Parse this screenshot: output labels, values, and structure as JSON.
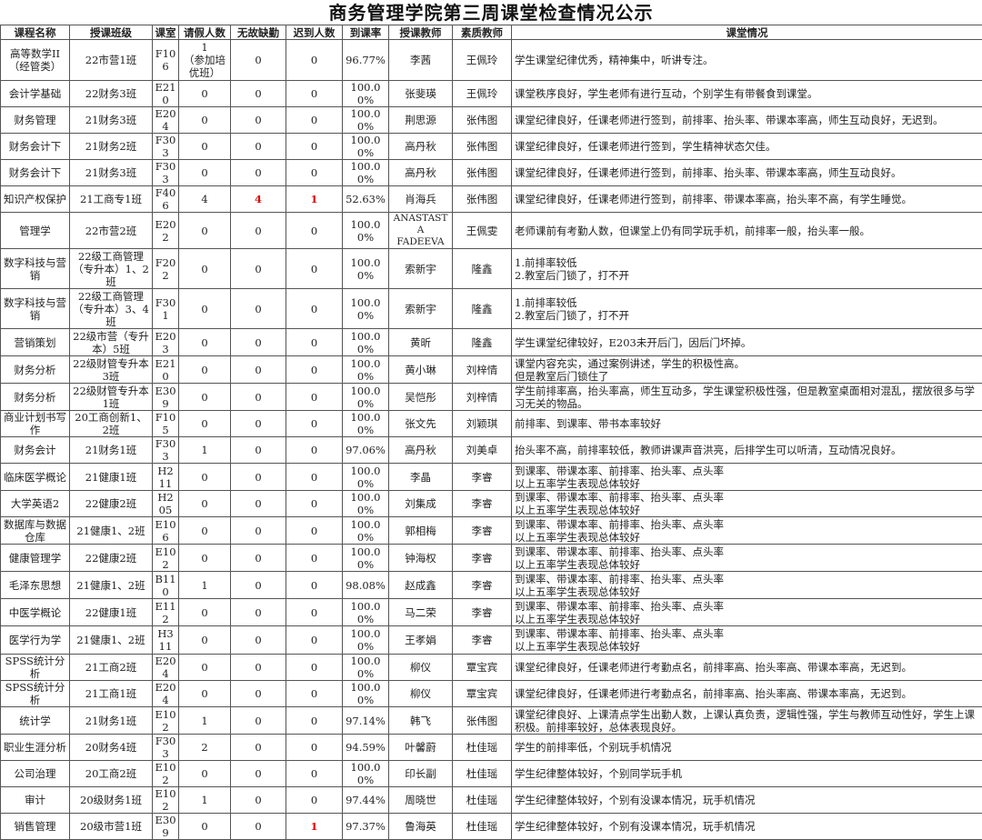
{
  "title": "商务管理学院第三周课堂检查情况公示",
  "colors": {
    "highlight_red": "#e00000",
    "border": "#555555"
  },
  "headers": [
    "课程名称",
    "授课班级",
    "课室",
    "请假人数",
    "无故缺勤",
    "迟到人数",
    "到课率",
    "授课教师",
    "素质教师",
    "课堂情况"
  ],
  "rows": [
    {
      "course": "高等数学II\n（经管类）",
      "class": "22市营1班",
      "room": "F106",
      "leave": "1\n（参加培优班）",
      "absent": "0",
      "late": "0",
      "rate": "96.77%",
      "teacher": "李茜",
      "quality": "王佩玲",
      "situation": "学生课堂纪律优秀，精神集中，听讲专注。"
    },
    {
      "course": "会计学基础",
      "class": "22财务3班",
      "room": "E210",
      "leave": "0",
      "absent": "0",
      "late": "0",
      "rate": "100.00%",
      "teacher": "张斐瑛",
      "quality": "王佩玲",
      "situation": "课堂秩序良好，学生老师有进行互动，个别学生有带餐食到课堂。"
    },
    {
      "course": "财务管理",
      "class": "21财务3班",
      "room": "E204",
      "leave": "0",
      "absent": "0",
      "late": "0",
      "rate": "100.00%",
      "teacher": "荆思源",
      "quality": "张伟图",
      "situation": "课堂纪律良好，任课老师进行签到，前排率、抬头率、带课本率高，师生互动良好，无迟到。"
    },
    {
      "course": "财务会计下",
      "class": "21财务2班",
      "room": "F303",
      "leave": "0",
      "absent": "0",
      "late": "0",
      "rate": "100.00%",
      "teacher": "高丹秋",
      "quality": "张伟图",
      "situation": "课堂纪律良好，任课老师进行签到，学生精神状态欠佳。"
    },
    {
      "course": "财务会计下",
      "class": "21财务3班",
      "room": "F303",
      "leave": "0",
      "absent": "0",
      "late": "0",
      "rate": "100.00%",
      "teacher": "高丹秋",
      "quality": "张伟图",
      "situation": "课堂纪律良好，任课老师进行签到，前排率、抬头率、带课本率高，师生互动良好。"
    },
    {
      "course": "知识产权保护",
      "class": "21工商专1班",
      "room": "F406",
      "leave": "4",
      "absent": "4",
      "late": "1",
      "rate": "52.63%",
      "teacher": "肖海兵",
      "quality": "张伟图",
      "situation": "课堂纪律良好，任课老师进行签到，前排率、带课本率高，抬头率不高，有学生睡觉。",
      "red": [
        "absent",
        "late"
      ]
    },
    {
      "course": "管理学",
      "class": "22市营2班",
      "room": "E202",
      "leave": "0",
      "absent": "0",
      "late": "0",
      "rate": "100.00%",
      "teacher": "ANASTASTA\nFADEEVA",
      "quality": "王佩雯",
      "situation": "老师课前有考勤人数，但课堂上仍有同学玩手机，前排率一般，抬头率一般。"
    },
    {
      "course": "数字科技与营销",
      "class": "22级工商管理（专升本）1、2班",
      "room": "F202",
      "leave": "0",
      "absent": "0",
      "late": "0",
      "rate": "100.00%",
      "teacher": "索新宇",
      "quality": "隆鑫",
      "situation": "1.前排率较低\n2.教室后门锁了，打不开"
    },
    {
      "course": "数字科技与营销",
      "class": "22级工商管理（专升本）3、4班",
      "room": "F301",
      "leave": "0",
      "absent": "0",
      "late": "0",
      "rate": "100.00%",
      "teacher": "索新宇",
      "quality": "隆鑫",
      "situation": "1.前排率较低\n2.教室后门锁了，打不开"
    },
    {
      "course": "营销策划",
      "class": "22级市营（专升本）5班",
      "room": "E203",
      "leave": "0",
      "absent": "0",
      "late": "0",
      "rate": "100.00%",
      "teacher": "黄昕",
      "quality": "隆鑫",
      "situation": "学生课堂纪律较好，E203未开后门，因后门坏掉。"
    },
    {
      "course": "财务分析",
      "class": "22级财管专升本3班",
      "room": "E210",
      "leave": "0",
      "absent": "0",
      "late": "0",
      "rate": "100.00%",
      "teacher": "黄小琳",
      "quality": "刘梓情",
      "situation": "课堂内容充实，通过案例讲述，学生的积极性高。\n但是教室后门锁住了"
    },
    {
      "course": "财务分析",
      "class": "22级财管专升本1班",
      "room": "E309",
      "leave": "0",
      "absent": "0",
      "late": "0",
      "rate": "100.00%",
      "teacher": "吴恺彤",
      "quality": "刘梓情",
      "situation": "学生前排率高，抬头率高，师生互动多，学生课堂积极性强，但是教室桌面相对混乱，摆放很多与学习无关的物品。"
    },
    {
      "course": "商业计划书写作",
      "class": "20工商创新1、2班",
      "room": "F105",
      "leave": "0",
      "absent": "0",
      "late": "0",
      "rate": "100.00%",
      "teacher": "张文先",
      "quality": "刘颖琪",
      "situation": "前排率、到课率、带书本率较好"
    },
    {
      "course": "财务会计",
      "class": "21财务1班",
      "room": "F303",
      "leave": "1",
      "absent": "0",
      "late": "0",
      "rate": "97.06%",
      "teacher": "高丹秋",
      "quality": "刘美卓",
      "situation": "抬头率不高，前排率较低，教师讲课声音洪亮，后排学生可以听清，互动情况良好。"
    },
    {
      "course": "临床医学概论",
      "class": "21健康1班",
      "room": "H211",
      "leave": "0",
      "absent": "0",
      "late": "0",
      "rate": "100.00%",
      "teacher": "李晶",
      "quality": "李睿",
      "situation": "到课率、带课本率、前排率、抬头率、点头率\n以上五率学生表现总体较好"
    },
    {
      "course": "大学英语2",
      "class": "22健康2班",
      "room": "H205",
      "leave": "0",
      "absent": "0",
      "late": "0",
      "rate": "100.00%",
      "teacher": "刘集成",
      "quality": "李睿",
      "situation": "到课率、带课本率、前排率、抬头率、点头率\n以上五率学生表现总体较好"
    },
    {
      "course": "数据库与数据仓库",
      "class": "21健康1、2班",
      "room": "E106",
      "leave": "0",
      "absent": "0",
      "late": "0",
      "rate": "100.00%",
      "teacher": "郭相梅",
      "quality": "李睿",
      "situation": "到课率、带课本率、前排率、抬头率、点头率\n以上五率学生表现总体较好"
    },
    {
      "course": "健康管理学",
      "class": "22健康2班",
      "room": "E102",
      "leave": "0",
      "absent": "0",
      "late": "0",
      "rate": "100.00%",
      "teacher": "钟海权",
      "quality": "李睿",
      "situation": "到课率、带课本率、前排率、抬头率、点头率\n以上五率学生表现总体较好"
    },
    {
      "course": "毛泽东思想",
      "class": "21健康1、2班",
      "room": "B110",
      "leave": "1",
      "absent": "0",
      "late": "0",
      "rate": "98.08%",
      "teacher": "赵成鑫",
      "quality": "李睿",
      "situation": "到课率、带课本率、前排率、抬头率、点头率\n以上五率学生表现总体较好"
    },
    {
      "course": "中医学概论",
      "class": "22健康1班",
      "room": "E112",
      "leave": "0",
      "absent": "0",
      "late": "0",
      "rate": "100.00%",
      "teacher": "马二荣",
      "quality": "李睿",
      "situation": "到课率、带课本率、前排率、抬头率、点头率\n以上五率学生表现总体较好"
    },
    {
      "course": "医学行为学",
      "class": "21健康1、2班",
      "room": "H311",
      "leave": "0",
      "absent": "0",
      "late": "0",
      "rate": "100.00%",
      "teacher": "王孝娟",
      "quality": "李睿",
      "situation": "到课率、带课本率、前排率、抬头率、点头率\n以上五率学生表现总体较好"
    },
    {
      "course": "SPSS统计分析",
      "class": "21工商2班",
      "room": "E204",
      "leave": "0",
      "absent": "0",
      "late": "0",
      "rate": "100.00%",
      "teacher": "柳仪",
      "quality": "覃宝宾",
      "situation": "课堂纪律良好，任课老师进行考勤点名，前排率高、抬头率高、带课本率高，无迟到。"
    },
    {
      "course": "SPSS统计分析",
      "class": "21工商1班",
      "room": "E204",
      "leave": "0",
      "absent": "0",
      "late": "0",
      "rate": "100.00%",
      "teacher": "柳仪",
      "quality": "覃宝宾",
      "situation": "课堂纪律良好，任课老师进行考勤点名，前排率高、抬头率高、带课本率高，无迟到。"
    },
    {
      "course": "统计学",
      "class": "21财务1班",
      "room": "E102",
      "leave": "1",
      "absent": "0",
      "late": "0",
      "rate": "97.14%",
      "teacher": "韩飞",
      "quality": "张伟图",
      "situation": "课堂纪律良好、上课清点学生出勤人数，上课认真负责，逻辑性强，学生与教师互动性好，学生上课积极。前排率较好，总体表现良好。"
    },
    {
      "course": "职业生涯分析",
      "class": "20财务4班",
      "room": "F303",
      "leave": "2",
      "absent": "0",
      "late": "0",
      "rate": "94.59%",
      "teacher": "叶馨蔚",
      "quality": "杜佳瑶",
      "situation": "学生的前排率低，个别玩手机情况"
    },
    {
      "course": "公司治理",
      "class": "20工商2班",
      "room": "E102",
      "leave": "0",
      "absent": "0",
      "late": "0",
      "rate": "100.00%",
      "teacher": "印长副",
      "quality": "杜佳瑶",
      "situation": "学生纪律整体较好，个别同学玩手机"
    },
    {
      "course": "审计",
      "class": "20级财务1班",
      "room": "E102",
      "leave": "1",
      "absent": "0",
      "late": "0",
      "rate": "97.44%",
      "teacher": "周晓世",
      "quality": "杜佳瑶",
      "situation": "学生纪律整体较好，个别有没课本情况，玩手机情况"
    },
    {
      "course": "销售管理",
      "class": "20级市营1班",
      "room": "E309",
      "leave": "0",
      "absent": "0",
      "late": "1",
      "rate": "97.37%",
      "teacher": "鲁海英",
      "quality": "杜佳瑶",
      "situation": "学生纪律整体较好，个别有没课本情况，玩手机情况",
      "red": [
        "late"
      ]
    }
  ]
}
